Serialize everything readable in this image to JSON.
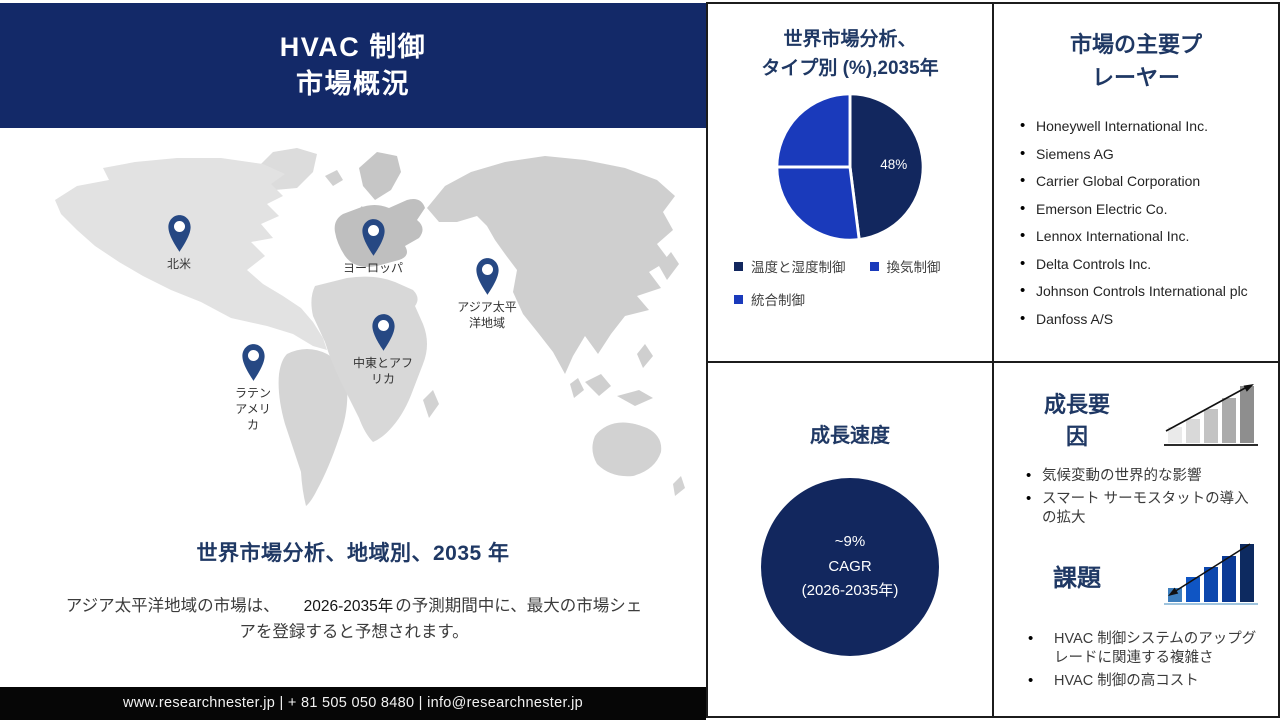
{
  "colors": {
    "header_bg": "#132968",
    "title_navy": "#1F3864",
    "pie_dark": "#12275E",
    "pie_blue": "#1A3ABB",
    "growth_circle_bg": "#12275E",
    "pin": "#264883",
    "footer_bg": "#060606"
  },
  "header": {
    "title_line1": "HVAC 制御",
    "title_line2": "市場概況"
  },
  "map": {
    "regions": [
      {
        "label": "北米"
      },
      {
        "label": "ヨーロッパ"
      },
      {
        "label": "アジア太平\n洋地域"
      },
      {
        "label": "中東とアフ\nリカ"
      },
      {
        "label": "ラテン\nアメリ\nカ"
      }
    ],
    "heading": "世界市場分析、地域別、2035 年",
    "note_part1": "アジア太平洋地域の市場は、",
    "note_highlight": "2026-2035年",
    "note_part2": "の予測期間中に、最大の市場シェアを登録すると予想されます。"
  },
  "chart_data": [
    {
      "type": "pie",
      "title": "世界市場分析、タイプ別 (%),2035年",
      "title_lines": [
        "世界市場分析、",
        "タイプ別 (%),2035年"
      ],
      "labels": [
        "温度と湿度制御",
        "換気制御",
        "統合制御"
      ],
      "values": [
        48,
        27,
        25
      ],
      "data_labels": [
        "48%",
        "",
        ""
      ],
      "colors": [
        "#12275E",
        "#1A3ABB",
        "#1A3ABB"
      ],
      "legend_position": "bottom"
    },
    {
      "type": "kpi-circle",
      "title": "成長速度",
      "value": "~9%",
      "metric": "CAGR",
      "period": "(2026-2035年)"
    }
  ],
  "players": {
    "title_lines": [
      "市場の主要プ",
      "レーヤー"
    ],
    "items": [
      "Honeywell International Inc.",
      "Siemens AG",
      "Carrier Global Corporation",
      "Emerson Electric Co.",
      "Lennox International Inc.",
      "Delta Controls Inc.",
      "Johnson Controls International plc",
      "Danfoss A/S"
    ]
  },
  "growth_factors": {
    "title": "成長要\n因",
    "items": [
      "気候変動の世界的な影響",
      "スマート サーモスタットの導入\nの拡大"
    ]
  },
  "challenges": {
    "title": "課題",
    "items": [
      "HVAC 制御システムのアップグレードに関連する複雑さ",
      "HVAC 制御の高コスト"
    ]
  },
  "footer": {
    "text": "www.researchnester.jp | + 81 505 050 8480 | info@researchnester.jp"
  }
}
